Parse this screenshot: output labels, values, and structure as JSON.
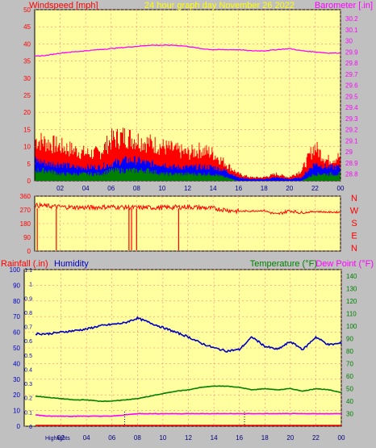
{
  "header": {
    "left_label": "Windspeed [mph]",
    "center_label": "24 hour graph day   November 26 2022",
    "right_label": "Barometer [.in]"
  },
  "middle": {
    "direction_labels": [
      "N",
      "W",
      "S",
      "E",
      "N"
    ]
  },
  "bottom_header": {
    "rainfall_label": "Rainfall (.in)",
    "humidity_label": "Humidity",
    "temperature_label": "Temperature (°F)",
    "dewpoint_label": "Dew Point (°F)"
  },
  "footer": {
    "highlights_label": "Highlights"
  },
  "colors": {
    "panel_bg": "#ffffa0",
    "page_bg": "#c0c0c0",
    "wind_gust": "#ff0000",
    "wind_avg": "#0000ff",
    "wind_min": "#008000",
    "barometer": "#ff00ff",
    "humidity": "#0000c0",
    "temperature": "#008000",
    "dewpoint": "#ff00ff",
    "rain": "#ff0000"
  },
  "chart_data": [
    {
      "type": "line",
      "name": "wind_and_barometer",
      "x_ticks": [
        "02",
        "04",
        "06",
        "08",
        "10",
        "12",
        "14",
        "16",
        "18",
        "20",
        "22",
        "00"
      ],
      "y_left_ticks": [
        "0",
        "5",
        "10",
        "15",
        "20",
        "25",
        "30",
        "35",
        "40",
        "45",
        "50"
      ],
      "y_left_range": [
        0,
        50
      ],
      "y_right_ticks": [
        "28.8",
        "28.9",
        "29",
        "29.1",
        "29.2",
        "29.3",
        "29.4",
        "29.5",
        "29.6",
        "29.7",
        "29.8",
        "29.9",
        "30",
        "30.1",
        "30.2"
      ],
      "y_right_range": [
        28.74,
        30.28
      ],
      "series": [
        {
          "name": "Windspeed gust",
          "x": [
            0,
            1,
            2,
            3,
            4,
            5,
            6,
            7,
            8,
            9,
            10,
            11,
            12,
            13,
            14,
            15,
            16,
            17,
            18,
            19,
            20,
            21,
            22,
            23,
            24
          ],
          "values": [
            12,
            11,
            10,
            9,
            8,
            8,
            12,
            13,
            12,
            11,
            10,
            9,
            8,
            9,
            8,
            5,
            2,
            1,
            1,
            2,
            1,
            3,
            10,
            6,
            7
          ]
        },
        {
          "name": "Windspeed avg",
          "x": [
            0,
            1,
            2,
            3,
            4,
            5,
            6,
            7,
            8,
            9,
            10,
            11,
            12,
            13,
            14,
            15,
            16,
            17,
            18,
            19,
            20,
            21,
            22,
            23,
            24
          ],
          "values": [
            6,
            5,
            5,
            4,
            4,
            4,
            5,
            6,
            6,
            5,
            5,
            4,
            4,
            4,
            4,
            3,
            1,
            0.5,
            0.5,
            1,
            0.5,
            1,
            5,
            4,
            4
          ]
        },
        {
          "name": "Windspeed min",
          "x": [
            0,
            1,
            2,
            3,
            4,
            5,
            6,
            7,
            8,
            9,
            10,
            11,
            12,
            13,
            14,
            15,
            16,
            17,
            18,
            19,
            20,
            21,
            22,
            23,
            24
          ],
          "values": [
            3,
            3,
            2,
            2,
            2,
            2,
            3,
            3,
            3,
            3,
            2,
            2,
            2,
            2,
            2,
            1,
            0,
            0,
            0,
            0,
            0,
            0,
            2,
            2,
            2
          ]
        },
        {
          "name": "Barometer",
          "x": [
            0,
            1,
            2,
            3,
            4,
            5,
            6,
            7,
            8,
            9,
            10,
            11,
            12,
            13,
            14,
            15,
            16,
            17,
            18,
            19,
            20,
            21,
            22,
            23,
            24
          ],
          "values": [
            29.86,
            29.87,
            29.89,
            29.9,
            29.91,
            29.92,
            29.93,
            29.94,
            29.95,
            29.96,
            29.96,
            29.96,
            29.95,
            29.93,
            29.92,
            29.92,
            29.92,
            29.91,
            29.91,
            29.92,
            29.93,
            29.91,
            29.9,
            29.89,
            29.89
          ]
        }
      ]
    },
    {
      "type": "line",
      "name": "wind_direction",
      "x_ticks": [
        "02",
        "04",
        "06",
        "08",
        "10",
        "12",
        "14",
        "16",
        "18",
        "20",
        "22",
        "00"
      ],
      "y_ticks": [
        "0",
        "90",
        "180",
        "270",
        "360"
      ],
      "y_range": [
        0,
        360
      ],
      "series": [
        {
          "name": "Wind direction",
          "x": [
            0,
            2,
            4,
            6,
            8,
            10,
            12,
            14,
            16,
            18,
            19,
            20,
            21,
            22,
            23,
            24
          ],
          "values": [
            300,
            290,
            285,
            290,
            285,
            285,
            290,
            280,
            260,
            265,
            240,
            265,
            250,
            260,
            255,
            255
          ]
        }
      ]
    },
    {
      "type": "line",
      "name": "rain_humidity_temperature",
      "x_ticks": [
        "02",
        "04",
        "06",
        "08",
        "10",
        "12",
        "14",
        "16",
        "18",
        "20",
        "22",
        "00"
      ],
      "y_left_ticks": [
        "0",
        "10",
        "20",
        "30",
        "40",
        "50",
        "60",
        "70",
        "80",
        "90",
        "100"
      ],
      "y_left_range": [
        0,
        100
      ],
      "y_rain_ticks": [
        "0",
        "0.1",
        "0.2",
        "0.3",
        "0.4",
        "0.5",
        "0.6",
        "0.7",
        "0.8",
        "0.9",
        "1",
        "1.1"
      ],
      "y_rain_range": [
        0,
        1.1
      ],
      "y_right_ticks": [
        "30",
        "40",
        "50",
        "60",
        "70",
        "80",
        "90",
        "100",
        "110",
        "120",
        "130",
        "140"
      ],
      "y_right_range": [
        20,
        145
      ],
      "series": [
        {
          "name": "Humidity",
          "x": [
            0,
            1,
            2,
            3,
            4,
            5,
            6,
            7,
            8,
            9,
            10,
            11,
            12,
            13,
            14,
            15,
            16,
            17,
            18,
            19,
            20,
            21,
            22,
            23,
            24
          ],
          "values": [
            59,
            59,
            60,
            61,
            62,
            64,
            65,
            66,
            69,
            66,
            63,
            60,
            57,
            53,
            50,
            48,
            49,
            57,
            51,
            49,
            54,
            49,
            57,
            52,
            53
          ]
        },
        {
          "name": "Temperature",
          "x": [
            0,
            1,
            2,
            3,
            4,
            5,
            6,
            7,
            8,
            9,
            10,
            11,
            12,
            13,
            14,
            15,
            16,
            17,
            18,
            19,
            20,
            21,
            22,
            23,
            24
          ],
          "values": [
            44,
            43,
            42,
            41,
            41,
            40,
            40,
            41,
            42,
            44,
            46,
            48,
            49,
            51,
            52,
            52,
            51,
            49,
            50,
            49,
            50,
            48,
            50,
            49,
            47
          ]
        },
        {
          "name": "Dew Point",
          "x": [
            0,
            1,
            2,
            3,
            4,
            5,
            6,
            7,
            8,
            9,
            10,
            11,
            12,
            13,
            14,
            15,
            16,
            17,
            18,
            19,
            20,
            21,
            22,
            23,
            24
          ],
          "values": [
            29,
            28,
            28,
            28,
            28,
            28,
            28,
            29,
            30,
            30,
            30,
            30,
            30,
            30,
            30,
            30,
            30,
            30,
            30,
            30,
            30,
            30,
            30,
            30,
            30
          ]
        },
        {
          "name": "Rainfall",
          "x": [
            0,
            24
          ],
          "values": [
            0,
            0
          ]
        }
      ]
    }
  ]
}
